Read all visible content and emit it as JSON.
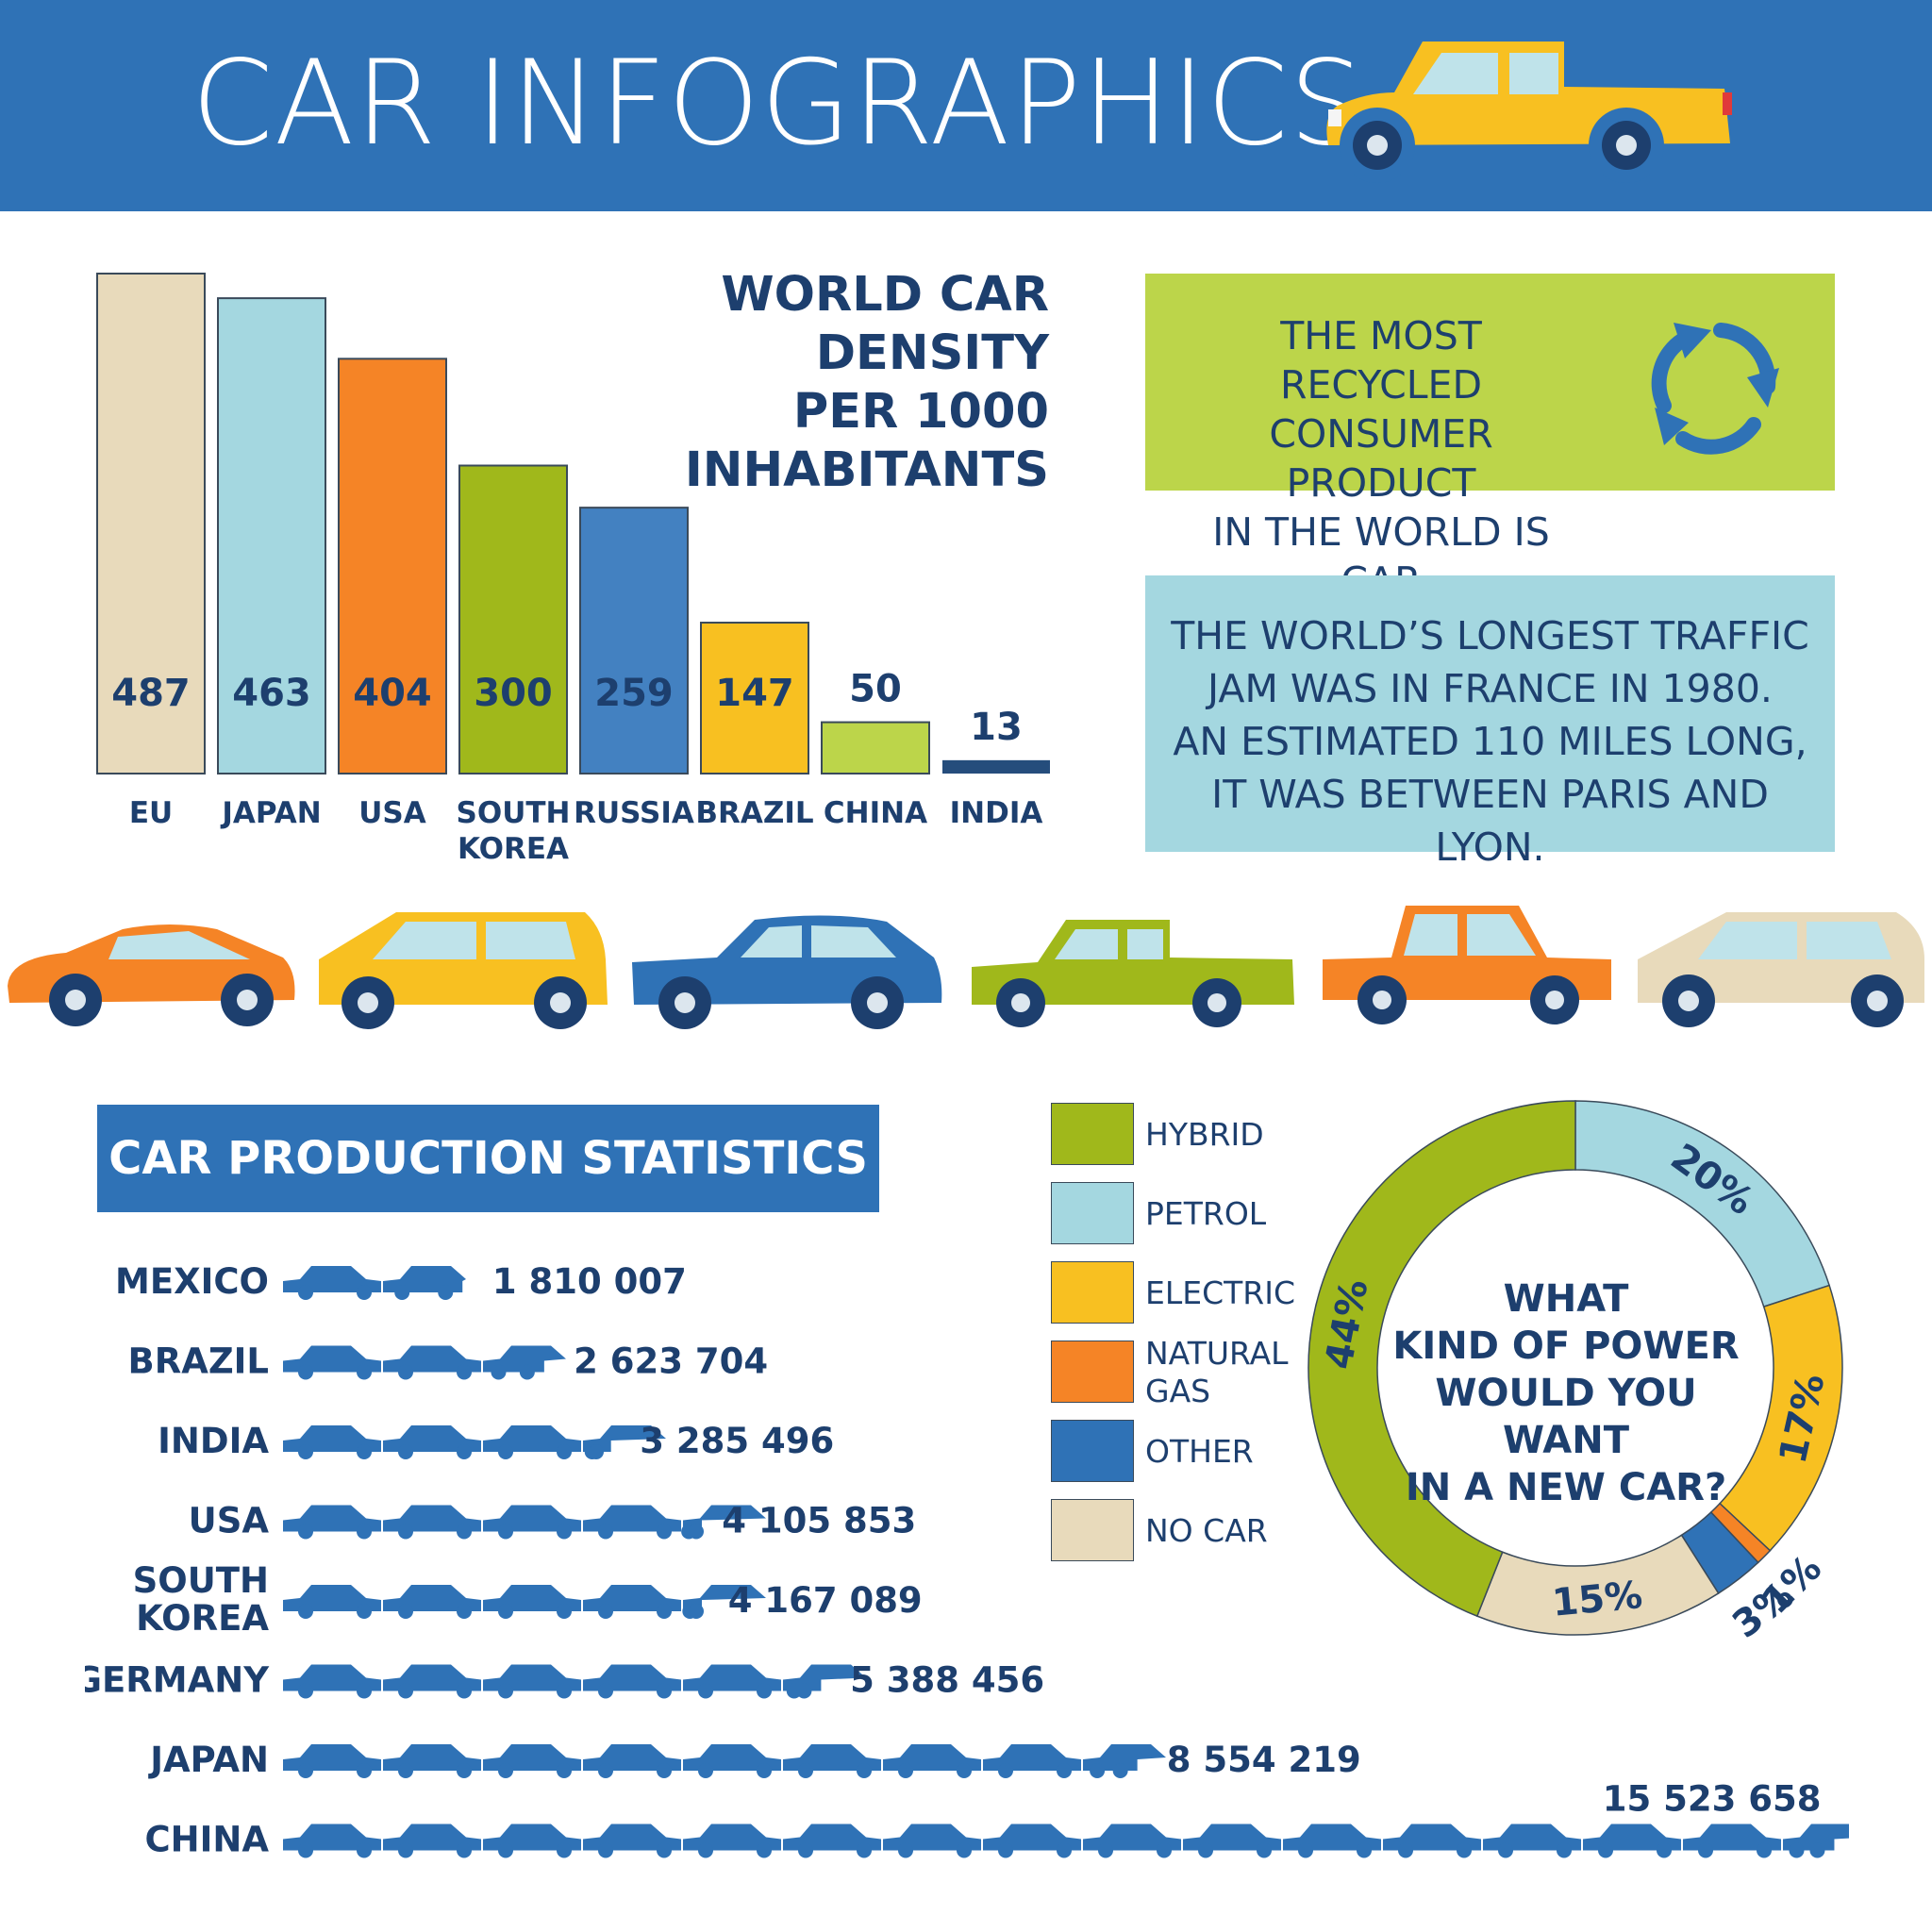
{
  "header": {
    "title": "CAR INFOGRAPHICS"
  },
  "colors": {
    "header_blue": "#2f72b6",
    "navy": "#1d3f6e",
    "beige": "#e8dabb",
    "light_blue": "#a4d7e0",
    "orange": "#f58426",
    "green": "#a0b81b",
    "mid_blue": "#4381c1",
    "yellow": "#f8c021",
    "lime": "#bcd54a",
    "dark_navy": "#254d7c"
  },
  "density": {
    "title_line1": "WORLD CAR DENSITY",
    "title_line2": "PER 1000 INHABITANTS"
  },
  "facts": {
    "recycled": [
      "THE MOST RECYCLED",
      "CONSUMER PRODUCT",
      "IN THE WORLD IS CAR"
    ],
    "traffic": [
      "THE WORLD’S LONGEST TRAFFIC",
      "JAM WAS IN FRANCE IN 1980.",
      "AN ESTIMATED 110 MILES LONG,",
      "IT WAS BETWEEN PARIS AND LYON."
    ]
  },
  "production": {
    "title": "CAR PRODUCTION STATISTICS"
  },
  "power": {
    "question_lines": [
      "WHAT",
      "KIND OF POWER",
      "WOULD YOU WANT",
      "IN A NEW CAR?"
    ],
    "legend": [
      {
        "label": "HYBRID",
        "color": "#a0b81b"
      },
      {
        "label": "PETROL",
        "color": "#a4d7e0"
      },
      {
        "label": "ELECTRIC",
        "color": "#f8c021"
      },
      {
        "label": "NATURAL GAS",
        "color": "#f58426"
      },
      {
        "label": "OTHER",
        "color": "#2f72b6"
      },
      {
        "label": "NO CAR",
        "color": "#e8dabb"
      }
    ]
  },
  "chart_data": [
    {
      "type": "bar",
      "title": "WORLD CAR DENSITY PER 1000 INHABITANTS",
      "categories": [
        "EU",
        "JAPAN",
        "USA",
        "SOUTH KOREA",
        "RUSSIA",
        "BRAZIL",
        "CHINA",
        "INDIA"
      ],
      "values": [
        487,
        463,
        404,
        300,
        259,
        147,
        50,
        13
      ],
      "value_labels": [
        "487",
        "463",
        "404",
        "300",
        "259",
        "147",
        "50",
        "13"
      ],
      "colors": [
        "#e8dabb",
        "#a4d7e0",
        "#f58426",
        "#a0b81b",
        "#4381c1",
        "#f8c021",
        "#bcd54a",
        "#254d7c"
      ],
      "ylim": [
        0,
        487
      ]
    },
    {
      "type": "bar",
      "orientation": "horizontal",
      "title": "CAR PRODUCTION STATISTICS",
      "categories": [
        "MEXICO",
        "BRAZIL",
        "INDIA",
        "USA",
        "SOUTH KOREA",
        "GERMANY",
        "JAPAN",
        "CHINA"
      ],
      "values": [
        1810007,
        2623704,
        3285496,
        4105853,
        4167089,
        5388456,
        8554219,
        15523658
      ],
      "value_labels": [
        "1 810 007",
        "2 623 704",
        "3 285 496",
        "4 105 853",
        "4 167 089",
        "5 388 456",
        "8 554 219",
        "15 523 658"
      ],
      "unit_per_icon": 1000000
    },
    {
      "type": "pie",
      "variant": "donut",
      "title": "WHAT KIND OF POWER WOULD YOU WANT IN A NEW CAR?",
      "categories": [
        "PETROL",
        "ELECTRIC",
        "NATURAL GAS",
        "OTHER",
        "NO CAR",
        "HYBRID"
      ],
      "values": [
        20,
        17,
        1,
        3,
        15,
        44
      ],
      "value_labels": [
        "20%",
        "17%",
        "1%",
        "3%",
        "15%",
        "44%"
      ],
      "colors": [
        "#a4d7e0",
        "#f8c021",
        "#f58426",
        "#2f72b6",
        "#e8dabb",
        "#a0b81b"
      ]
    }
  ]
}
